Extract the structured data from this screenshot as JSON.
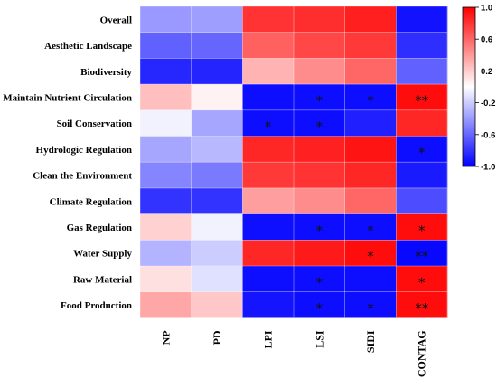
{
  "chart_data": {
    "type": "heatmap",
    "title": "",
    "rows": [
      "Overall",
      "Aesthetic Landscape",
      "Biodiversity",
      "Maintain Nutrient Circulation",
      "Soil Conservation",
      "Hydrologic Regulation",
      "Clean the Environment",
      "Climate Regulation",
      "Gas Regulation",
      "Water Supply",
      "Raw Material",
      "Food Production"
    ],
    "columns": [
      "NP",
      "PD",
      "LPI",
      "LSI",
      "SIDI",
      "CONTAG"
    ],
    "values": [
      [
        -0.4,
        -0.38,
        0.8,
        0.82,
        0.88,
        -0.93
      ],
      [
        -0.62,
        -0.6,
        0.62,
        0.72,
        0.78,
        -0.82
      ],
      [
        -0.85,
        -0.86,
        0.3,
        0.45,
        0.6,
        -0.62
      ],
      [
        0.25,
        0.05,
        -0.95,
        -0.95,
        -0.95,
        0.95
      ],
      [
        -0.05,
        -0.35,
        -0.95,
        -0.95,
        -0.88,
        0.85
      ],
      [
        -0.35,
        -0.28,
        0.85,
        0.87,
        0.92,
        -0.95
      ],
      [
        -0.48,
        -0.52,
        0.78,
        0.8,
        0.85,
        -0.9
      ],
      [
        -0.8,
        -0.8,
        0.38,
        0.45,
        0.6,
        -0.7
      ],
      [
        0.18,
        -0.05,
        -0.94,
        -0.95,
        -0.95,
        0.95
      ],
      [
        -0.3,
        -0.2,
        0.85,
        0.9,
        0.95,
        -0.97
      ],
      [
        0.12,
        -0.12,
        -0.95,
        -0.95,
        -0.95,
        0.95
      ],
      [
        0.35,
        0.22,
        -0.92,
        -0.95,
        -0.95,
        0.95
      ]
    ],
    "annotations": [
      [
        3,
        3,
        "*"
      ],
      [
        3,
        4,
        "*"
      ],
      [
        3,
        5,
        "**"
      ],
      [
        4,
        2,
        "*"
      ],
      [
        4,
        3,
        "*"
      ],
      [
        5,
        5,
        "*"
      ],
      [
        8,
        3,
        "*"
      ],
      [
        8,
        4,
        "*"
      ],
      [
        8,
        5,
        "*"
      ],
      [
        9,
        4,
        "*"
      ],
      [
        9,
        5,
        "**"
      ],
      [
        10,
        3,
        "*"
      ],
      [
        10,
        5,
        "*"
      ],
      [
        11,
        3,
        "*"
      ],
      [
        11,
        4,
        "*"
      ],
      [
        11,
        5,
        "**"
      ]
    ],
    "colorbar": {
      "range": [
        -1.0,
        1.0
      ],
      "ticks": [
        {
          "value": 1.0,
          "label": "1.0"
        },
        {
          "value": 0.6,
          "label": "0.6"
        },
        {
          "value": 0.2,
          "label": "0.2"
        },
        {
          "value": -0.2,
          "label": "-0.2"
        },
        {
          "value": -0.6,
          "label": "-0.6"
        },
        {
          "value": -1.0,
          "label": "-1.0"
        }
      ],
      "colors": {
        "negative": "#0000ff",
        "neutral": "#ffffff",
        "positive": "#ff0000"
      }
    },
    "xlabel": "",
    "ylabel": ""
  }
}
